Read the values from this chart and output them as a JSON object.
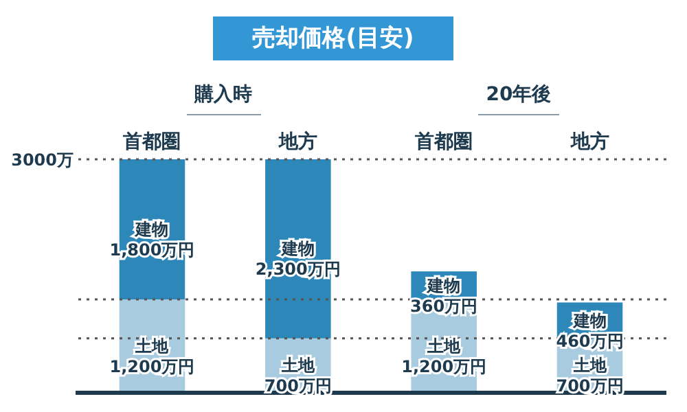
{
  "chart_data": {
    "type": "bar",
    "title": "売却価格(目安)",
    "annotations": [
      "購入時",
      "20年後"
    ],
    "categories": [
      "首都圏",
      "地方",
      "首都圏",
      "地方"
    ],
    "stacked": true,
    "series": [
      {
        "name": "土地",
        "color": "#a8cbe0",
        "values": [
          1200,
          700,
          1200,
          700
        ],
        "value_labels": [
          "1,200万円",
          "700万円",
          "1,200万円",
          "700万円"
        ]
      },
      {
        "name": "建物",
        "color": "#2e87b9",
        "values": [
          1800,
          2300,
          360,
          460
        ],
        "value_labels": [
          "1,800万円",
          "2,300万円",
          "360万円",
          "460万円"
        ]
      }
    ],
    "ylim": [
      0,
      3000
    ],
    "yticks": [
      {
        "value": 3000,
        "label": "3000万"
      }
    ],
    "ref_lines": [
      {
        "axis": "y",
        "value": 3000,
        "line_style": "dotted",
        "color": "#555555"
      },
      {
        "axis": "y",
        "value": 1200,
        "line_style": "dotted",
        "color": "#555555"
      },
      {
        "axis": "y",
        "value": 700,
        "line_style": "dotted",
        "color": "#555555"
      }
    ]
  }
}
